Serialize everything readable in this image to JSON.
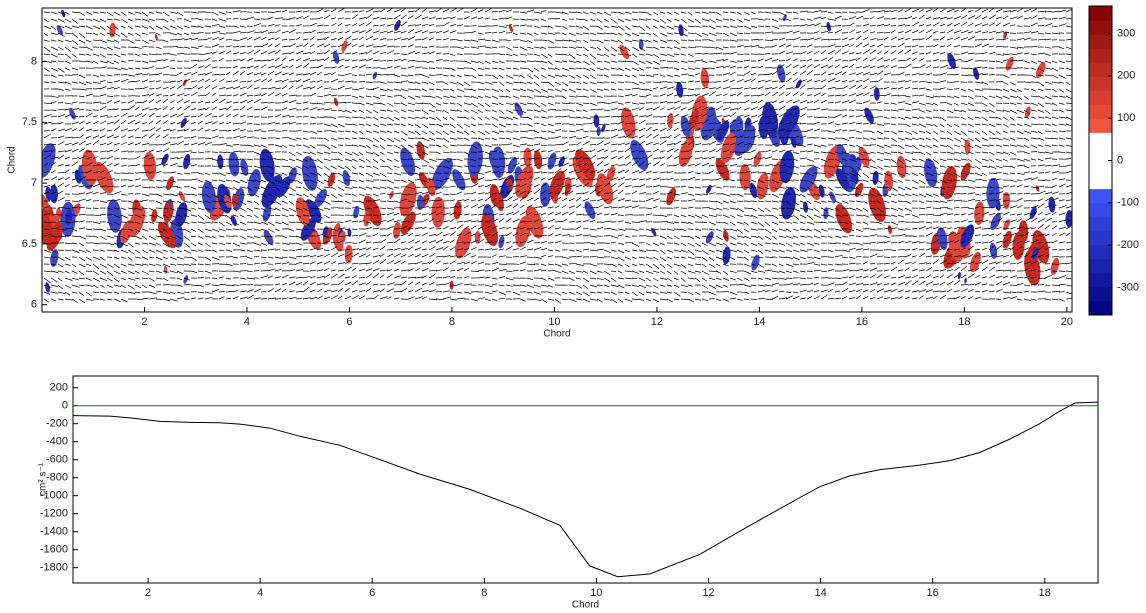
{
  "chart_data": [
    {
      "type": "vector_field",
      "xlabel": "Chord",
      "ylabel": "Chord",
      "xlim": [
        0,
        20.1
      ],
      "ylim": [
        5.94,
        8.44
      ],
      "xticks": [
        2,
        4,
        6,
        8,
        10,
        12,
        14,
        16,
        18,
        20
      ],
      "yticks": [
        6,
        {
          "value": 6.5,
          "label": "6.5"
        },
        7,
        {
          "value": 7.5,
          "label": "7.5"
        },
        8
      ],
      "colorbar": {
        "clim": [
          -365,
          365
        ],
        "ticks": [
          -300,
          -200,
          -100,
          0,
          100,
          200,
          300
        ]
      }
    },
    {
      "type": "line",
      "xlabel": "Chord",
      "ylabel": "cm² s⁻¹",
      "xlim": [
        0.66,
        18.95
      ],
      "ylim": [
        -1970,
        330
      ],
      "xticks": [
        2,
        4,
        6,
        8,
        10,
        12,
        14,
        16,
        18
      ],
      "yticks": [
        -1800,
        -1600,
        -1400,
        -1200,
        -1000,
        -800,
        -600,
        -400,
        -200,
        0,
        200
      ],
      "hline": {
        "value": 0,
        "color": "#008000"
      },
      "x": [
        0.66,
        1.32,
        1.68,
        2.21,
        2.75,
        3.28,
        3.64,
        4.18,
        4.71,
        5.42,
        6.14,
        6.85,
        7.74,
        8.64,
        9.35,
        9.88,
        10.38,
        10.95,
        11.85,
        12.74,
        13.63,
        13.99,
        14.52,
        15.06,
        15.77,
        16.31,
        16.84,
        17.38,
        17.91,
        18.27,
        18.54,
        18.95
      ],
      "series": [
        {
          "color": "#000000",
          "values": [
            -110,
            -115,
            -135,
            -175,
            -185,
            -190,
            -205,
            -250,
            -340,
            -440,
            -600,
            -760,
            -930,
            -1140,
            -1330,
            -1780,
            -1900,
            -1870,
            -1650,
            -1330,
            -1020,
            -900,
            -780,
            -710,
            -660,
            -610,
            -520,
            -370,
            -200,
            -60,
            30,
            40
          ]
        }
      ]
    }
  ]
}
